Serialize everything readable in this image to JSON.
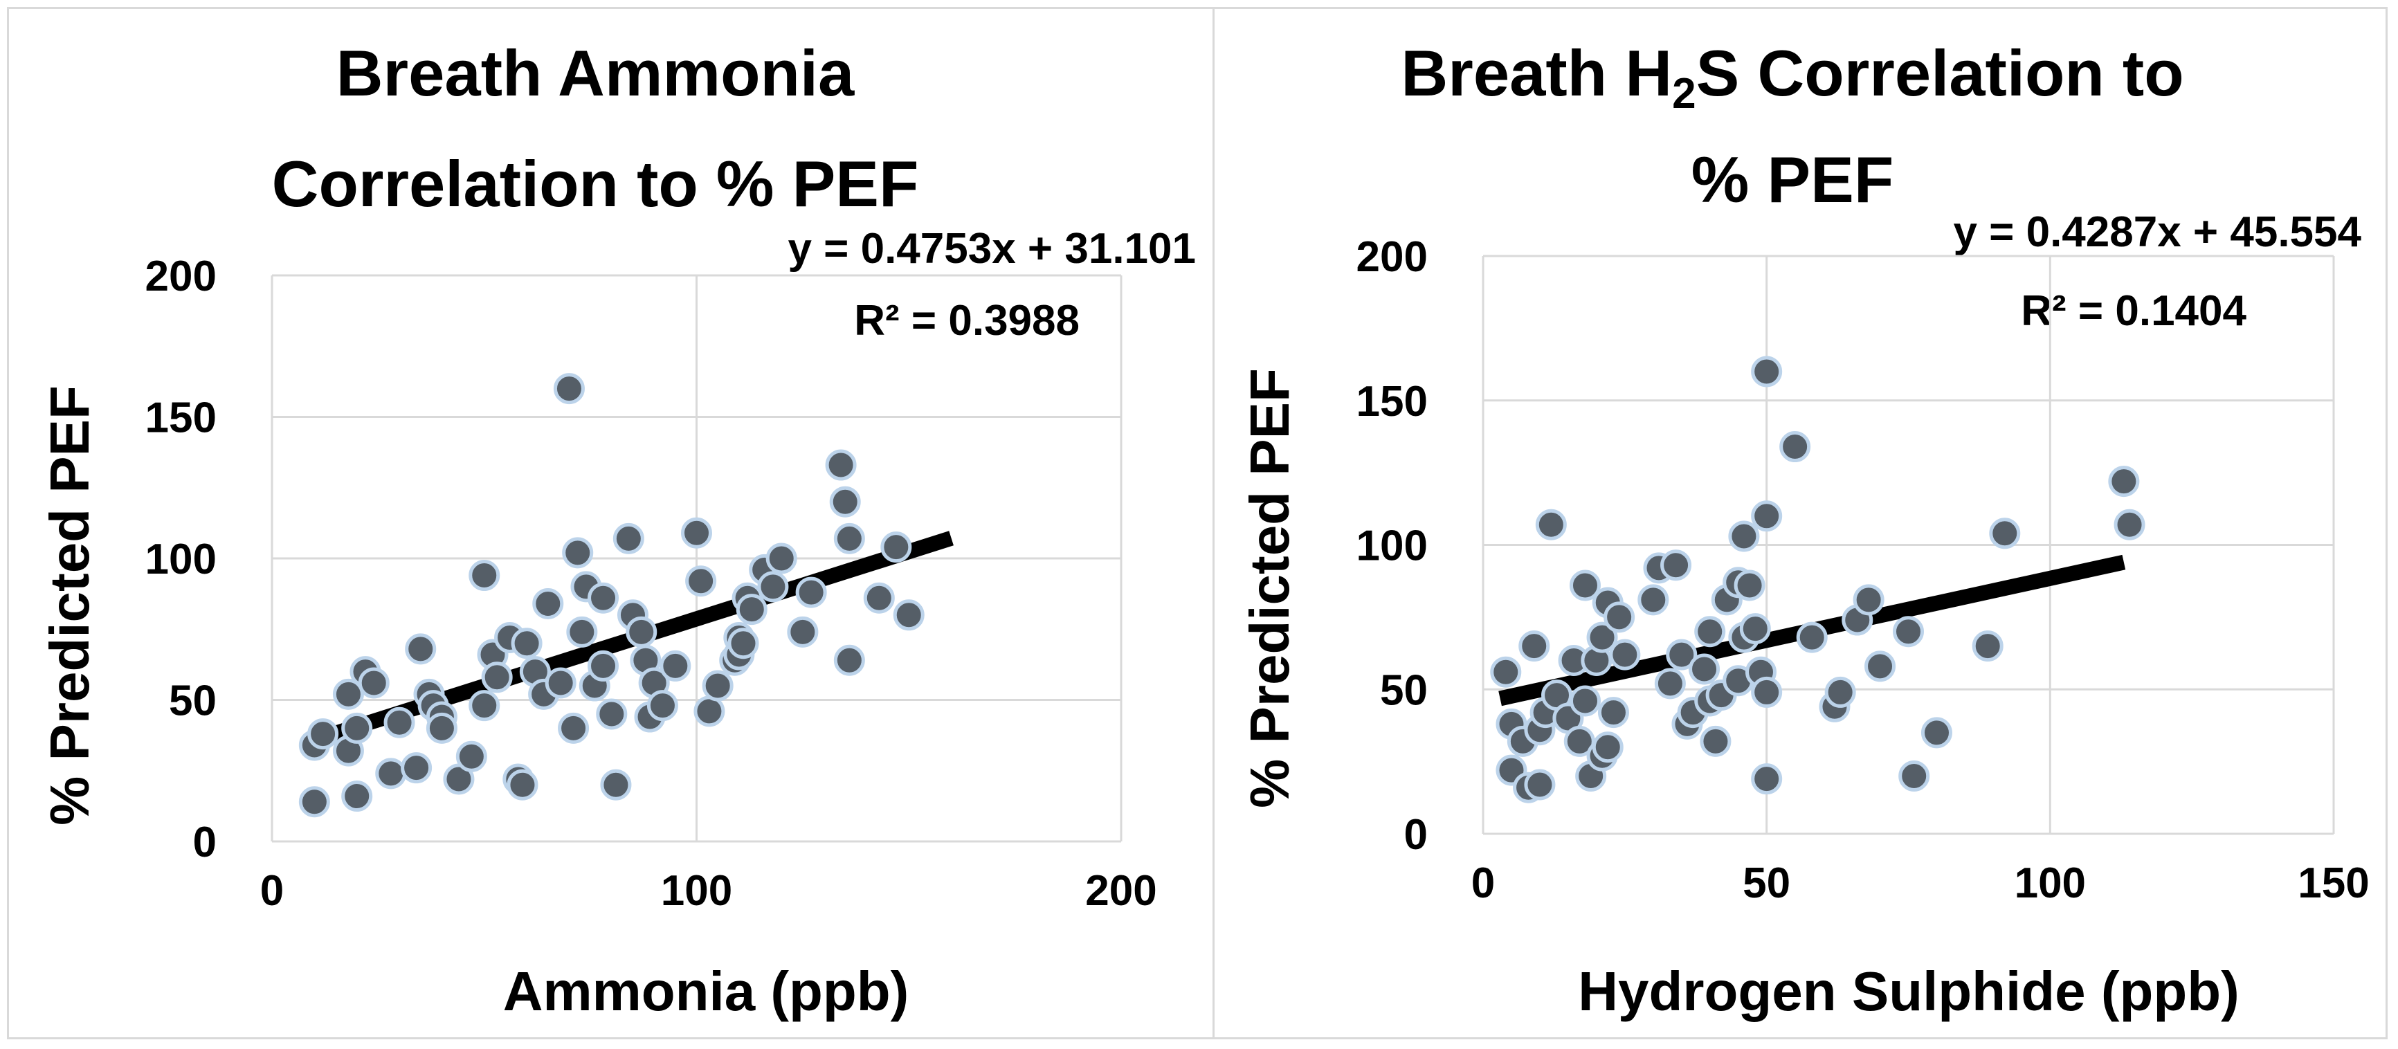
{
  "chart_data": [
    {
      "type": "scatter",
      "title_lines": [
        "Breath Ammonia",
        "Correlation to % PEF"
      ],
      "xlabel": "Ammonia (ppb)",
      "ylabel": "% Predicted PEF",
      "xlim": [
        0,
        200
      ],
      "ylim": [
        0,
        200
      ],
      "xticks": [
        "0",
        "100",
        "200"
      ],
      "yticks": [
        "0",
        "50",
        "100",
        "150",
        "200"
      ],
      "grid": true,
      "trendline": {
        "slope": 0.4753,
        "intercept": 31.101,
        "x_range": [
          10,
          160
        ]
      },
      "equation": "y = 0.4753x + 31.101",
      "r2": "R² = 0.3988",
      "points": [
        [
          10,
          14
        ],
        [
          10,
          34
        ],
        [
          12,
          38
        ],
        [
          18,
          32
        ],
        [
          18,
          52
        ],
        [
          20,
          16
        ],
        [
          20,
          40
        ],
        [
          22,
          60
        ],
        [
          24,
          56
        ],
        [
          28,
          24
        ],
        [
          30,
          42
        ],
        [
          34,
          26
        ],
        [
          35,
          68
        ],
        [
          37,
          52
        ],
        [
          38,
          48
        ],
        [
          40,
          44
        ],
        [
          40,
          40
        ],
        [
          44,
          22
        ],
        [
          47,
          30
        ],
        [
          50,
          48
        ],
        [
          50,
          94
        ],
        [
          52,
          66
        ],
        [
          53,
          58
        ],
        [
          56,
          72
        ],
        [
          58,
          22
        ],
        [
          59,
          20
        ],
        [
          60,
          70
        ],
        [
          62,
          60
        ],
        [
          64,
          52
        ],
        [
          65,
          84
        ],
        [
          68,
          56
        ],
        [
          70,
          160
        ],
        [
          71,
          40
        ],
        [
          72,
          102
        ],
        [
          73,
          74
        ],
        [
          74,
          90
        ],
        [
          76,
          55
        ],
        [
          78,
          86
        ],
        [
          78,
          62
        ],
        [
          80,
          45
        ],
        [
          81,
          20
        ],
        [
          84,
          107
        ],
        [
          85,
          80
        ],
        [
          87,
          74
        ],
        [
          88,
          64
        ],
        [
          89,
          44
        ],
        [
          90,
          56
        ],
        [
          92,
          48
        ],
        [
          95,
          62
        ],
        [
          100,
          109
        ],
        [
          101,
          92
        ],
        [
          103,
          46
        ],
        [
          105,
          55
        ],
        [
          109,
          64
        ],
        [
          110,
          66
        ],
        [
          110,
          72
        ],
        [
          111,
          70
        ],
        [
          112,
          86
        ],
        [
          113,
          82
        ],
        [
          116,
          96
        ],
        [
          118,
          90
        ],
        [
          120,
          100
        ],
        [
          125,
          74
        ],
        [
          127,
          88
        ],
        [
          134,
          133
        ],
        [
          135,
          120
        ],
        [
          136,
          107
        ],
        [
          136,
          64
        ],
        [
          143,
          86
        ],
        [
          147,
          104
        ],
        [
          150,
          80
        ]
      ]
    },
    {
      "type": "scatter",
      "title_line1_pre": "Breath H",
      "title_line1_sub": "2",
      "title_line1_post": "S Correlation to",
      "title_line2": "% PEF",
      "xlabel": "Hydrogen Sulphide (ppb)",
      "ylabel": "% Predicted PEF",
      "xlim": [
        0,
        150
      ],
      "ylim": [
        0,
        200
      ],
      "xticks": [
        "0",
        "50",
        "100",
        "150"
      ],
      "yticks": [
        "0",
        "50",
        "100",
        "150",
        "200"
      ],
      "grid": true,
      "trendline": {
        "slope": 0.4287,
        "intercept": 45.554,
        "x_range": [
          3,
          113
        ]
      },
      "equation": "y = 0.4287x + 45.554",
      "r2": "R² = 0.1404",
      "points": [
        [
          4,
          56
        ],
        [
          5,
          38
        ],
        [
          5,
          22
        ],
        [
          7,
          32
        ],
        [
          8,
          16
        ],
        [
          9,
          65
        ],
        [
          10,
          36
        ],
        [
          10,
          17
        ],
        [
          11,
          42
        ],
        [
          12,
          107
        ],
        [
          13,
          48
        ],
        [
          15,
          40
        ],
        [
          16,
          60
        ],
        [
          17,
          32
        ],
        [
          18,
          46
        ],
        [
          18,
          86
        ],
        [
          19,
          20
        ],
        [
          20,
          60
        ],
        [
          21,
          27
        ],
        [
          21,
          68
        ],
        [
          22,
          80
        ],
        [
          22,
          30
        ],
        [
          23,
          42
        ],
        [
          24,
          75
        ],
        [
          25,
          62
        ],
        [
          30,
          81
        ],
        [
          31,
          92
        ],
        [
          33,
          52
        ],
        [
          34,
          93
        ],
        [
          35,
          62
        ],
        [
          36,
          38
        ],
        [
          37,
          42
        ],
        [
          39,
          57
        ],
        [
          40,
          46
        ],
        [
          40,
          70
        ],
        [
          41,
          32
        ],
        [
          42,
          48
        ],
        [
          43,
          81
        ],
        [
          45,
          53
        ],
        [
          45,
          87
        ],
        [
          46,
          68
        ],
        [
          46,
          103
        ],
        [
          47,
          86
        ],
        [
          48,
          71
        ],
        [
          49,
          56
        ],
        [
          50,
          19
        ],
        [
          50,
          49
        ],
        [
          50,
          110
        ],
        [
          50,
          160
        ],
        [
          55,
          134
        ],
        [
          58,
          68
        ],
        [
          62,
          44
        ],
        [
          63,
          49
        ],
        [
          66,
          74
        ],
        [
          68,
          81
        ],
        [
          70,
          58
        ],
        [
          75,
          70
        ],
        [
          76,
          20
        ],
        [
          80,
          35
        ],
        [
          89,
          65
        ],
        [
          92,
          104
        ],
        [
          113,
          122
        ],
        [
          114,
          107
        ]
      ]
    }
  ]
}
